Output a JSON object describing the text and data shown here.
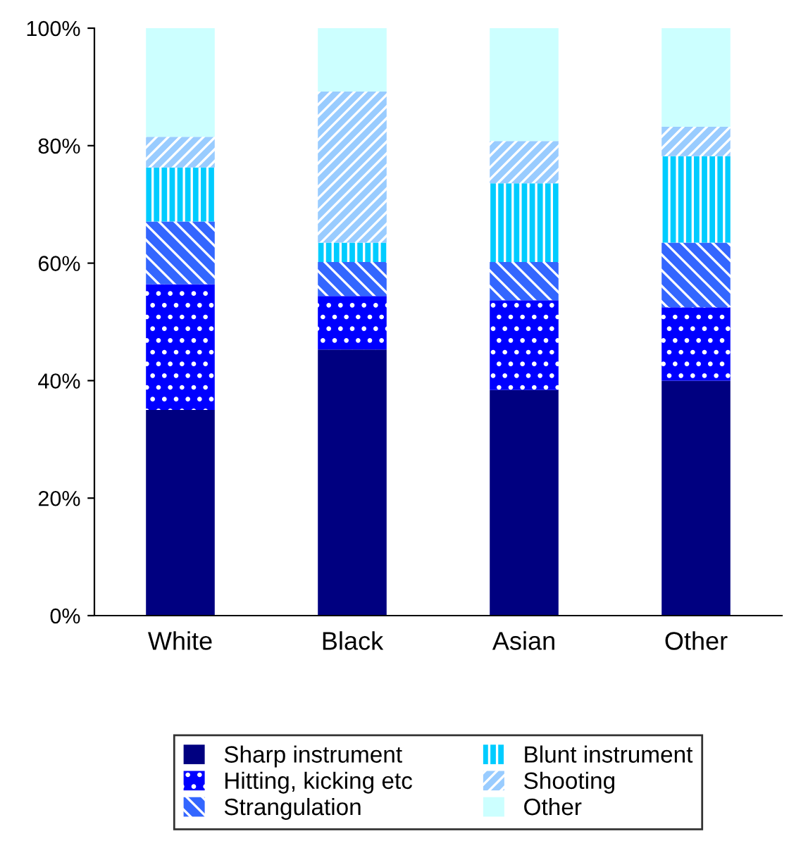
{
  "chart_data": {
    "type": "bar",
    "stacked": true,
    "categories": [
      "White",
      "Black",
      "Asian",
      "Other"
    ],
    "series": [
      {
        "name": "Sharp instrument",
        "color": "#000080",
        "values": [
          35.0,
          45.3,
          38.4,
          40.0
        ]
      },
      {
        "name": "Hitting, kicking etc",
        "color": "#0000ff",
        "values": [
          21.4,
          9.1,
          15.3,
          12.5
        ]
      },
      {
        "name": "Strangulation",
        "color": "#3366ff",
        "values": [
          10.7,
          5.8,
          6.5,
          11.0
        ]
      },
      {
        "name": "Blunt instrument",
        "color": "#00ccff",
        "values": [
          9.2,
          3.3,
          13.4,
          14.7
        ]
      },
      {
        "name": "Shooting",
        "color": "#99ccff",
        "values": [
          5.2,
          25.7,
          7.2,
          5.0
        ]
      },
      {
        "name": "Other",
        "color": "#ccffff",
        "values": [
          18.5,
          10.8,
          19.2,
          16.8
        ]
      }
    ],
    "ylim": [
      0,
      100
    ],
    "yticks": [
      {
        "value": 0,
        "label": "0%"
      },
      {
        "value": 20,
        "label": "20%"
      },
      {
        "value": 40,
        "label": "40%"
      },
      {
        "value": 60,
        "label": "60%"
      },
      {
        "value": 80,
        "label": "80%"
      },
      {
        "value": 100,
        "label": "100%"
      }
    ],
    "grid": false,
    "legend": "bottom"
  }
}
